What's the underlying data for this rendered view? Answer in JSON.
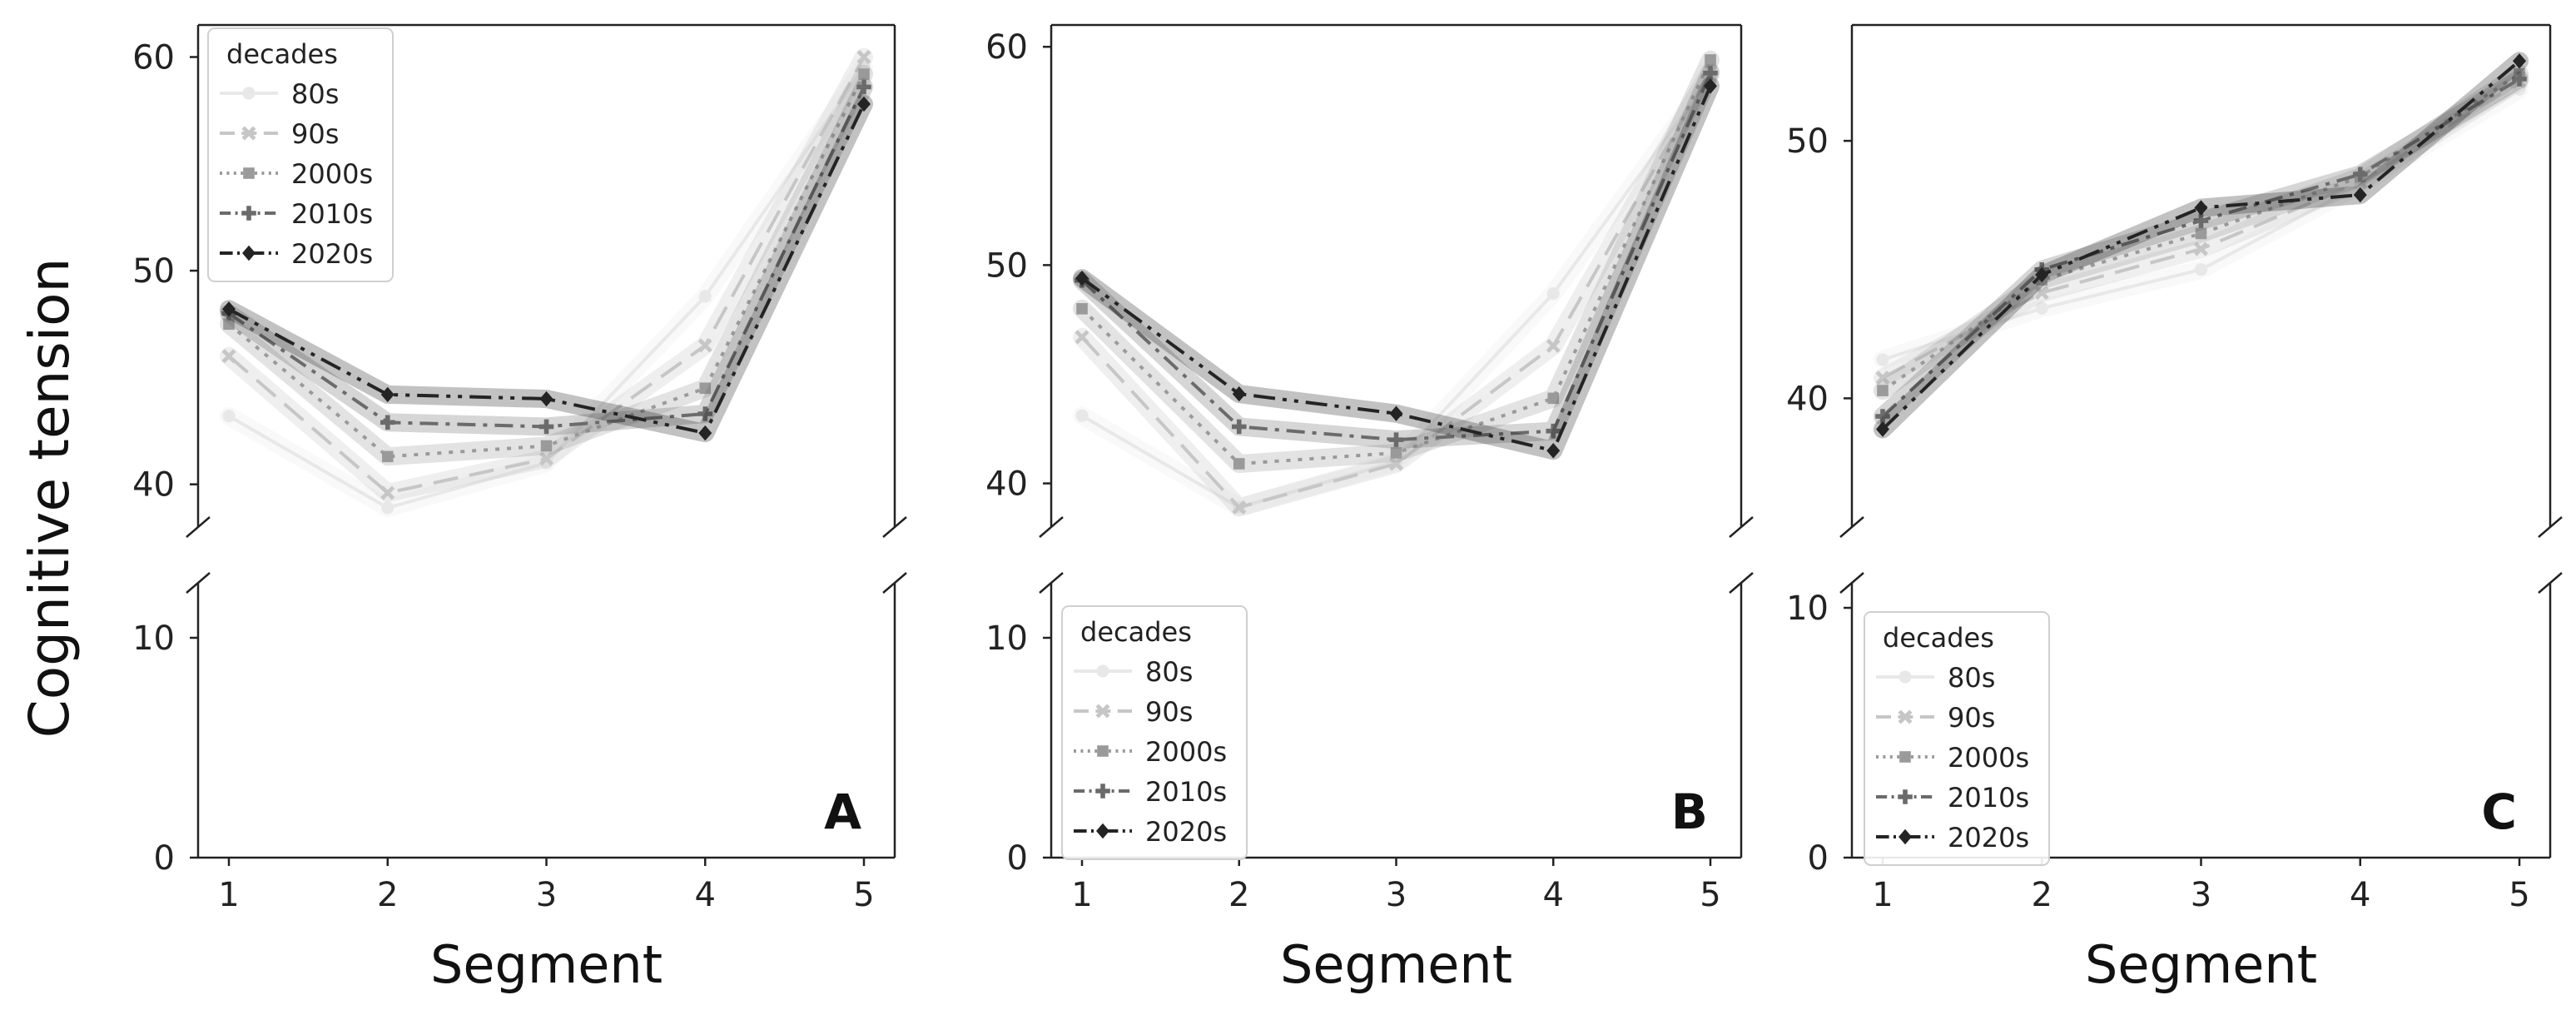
{
  "figure": {
    "ylabel": "Cognitive tension",
    "xlabel": "Segment",
    "legend_title": "decades"
  },
  "chart_data": [
    {
      "panel": "A",
      "type": "line",
      "title": "",
      "xlabel": "Segment",
      "ylabel": "Cognitive tension",
      "x": [
        1,
        2,
        3,
        4,
        5
      ],
      "upper_ylim": [
        38,
        61.5
      ],
      "lower_ylim": [
        0,
        12.5
      ],
      "upper_yticks": [
        40,
        50,
        60
      ],
      "lower_yticks": [
        0,
        10
      ],
      "legend_position": "upper-left",
      "grid": false,
      "series": [
        {
          "name": "80s",
          "color": "#e8e8e8",
          "values": [
            43.2,
            38.9,
            41.0,
            48.8,
            59.5
          ]
        },
        {
          "name": "90s",
          "color": "#c6c6c6",
          "values": [
            46.0,
            39.6,
            41.2,
            46.5,
            60.0
          ]
        },
        {
          "name": "2000s",
          "color": "#9a9a9a",
          "values": [
            47.5,
            41.3,
            41.8,
            44.5,
            59.2
          ]
        },
        {
          "name": "2010s",
          "color": "#6b6b6b",
          "values": [
            48.0,
            42.9,
            42.7,
            43.3,
            58.6
          ]
        },
        {
          "name": "2020s",
          "color": "#242424",
          "values": [
            48.2,
            44.2,
            44.0,
            42.4,
            57.8
          ]
        }
      ]
    },
    {
      "panel": "B",
      "type": "line",
      "title": "",
      "xlabel": "Segment",
      "ylabel": "",
      "x": [
        1,
        2,
        3,
        4,
        5
      ],
      "upper_ylim": [
        38,
        61
      ],
      "lower_ylim": [
        0,
        12.5
      ],
      "upper_yticks": [
        40,
        50,
        60
      ],
      "lower_yticks": [
        0,
        10
      ],
      "legend_position": "lower-left",
      "grid": false,
      "series": [
        {
          "name": "80s",
          "color": "#e8e8e8",
          "values": [
            43.1,
            38.9,
            41.0,
            48.7,
            58.6
          ]
        },
        {
          "name": "90s",
          "color": "#c6c6c6",
          "values": [
            46.7,
            38.9,
            40.9,
            46.3,
            58.9
          ]
        },
        {
          "name": "2000s",
          "color": "#9a9a9a",
          "values": [
            48.0,
            40.9,
            41.4,
            43.9,
            59.4
          ]
        },
        {
          "name": "2010s",
          "color": "#6b6b6b",
          "values": [
            49.3,
            42.6,
            42.0,
            42.4,
            58.8
          ]
        },
        {
          "name": "2020s",
          "color": "#242424",
          "values": [
            49.4,
            44.1,
            43.2,
            41.5,
            58.2
          ]
        }
      ]
    },
    {
      "panel": "C",
      "type": "line",
      "title": "",
      "xlabel": "Segment",
      "ylabel": "",
      "x": [
        1,
        2,
        3,
        4,
        5
      ],
      "upper_ylim": [
        35,
        54.5
      ],
      "lower_ylim": [
        0,
        11
      ],
      "upper_yticks": [
        40,
        50
      ],
      "lower_yticks": [
        0,
        10
      ],
      "legend_position": "lower-left",
      "grid": false,
      "series": [
        {
          "name": "80s",
          "color": "#e8e8e8",
          "values": [
            41.5,
            43.5,
            45.0,
            48.3,
            52.0
          ]
        },
        {
          "name": "90s",
          "color": "#c6c6c6",
          "values": [
            40.8,
            44.1,
            45.8,
            48.4,
            52.3
          ]
        },
        {
          "name": "2000s",
          "color": "#9a9a9a",
          "values": [
            40.3,
            44.6,
            46.4,
            48.6,
            52.6
          ]
        },
        {
          "name": "2010s",
          "color": "#6b6b6b",
          "values": [
            39.3,
            45.0,
            46.9,
            48.7,
            52.4
          ]
        },
        {
          "name": "2020s",
          "color": "#242424",
          "values": [
            38.8,
            44.8,
            47.4,
            47.9,
            53.1
          ]
        }
      ]
    }
  ]
}
